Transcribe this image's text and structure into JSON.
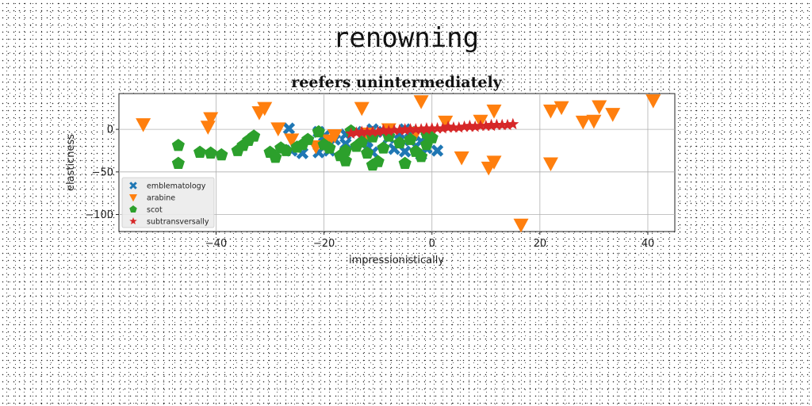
{
  "figure": {
    "suptitle": "renowning"
  },
  "chart_data": {
    "type": "scatter",
    "title": "reefers unintermediately",
    "xlabel": "impressionistically",
    "ylabel": "elasticness",
    "xlim": [
      -58,
      45
    ],
    "ylim": [
      -120,
      42
    ],
    "xticks": [
      -40,
      -20,
      0,
      20,
      40
    ],
    "yticks": [
      0,
      -50,
      -100
    ],
    "grid": true,
    "legend_position": "lower-left",
    "series": [
      {
        "name": "emblematology",
        "marker": "X",
        "color": "#1f77b4",
        "points": [
          [
            -26.5,
            1
          ],
          [
            -21,
            -3
          ],
          [
            -20,
            -8
          ],
          [
            -18,
            -12
          ],
          [
            -21,
            -27
          ],
          [
            -19,
            -25
          ],
          [
            -16,
            -17
          ],
          [
            -13,
            -17
          ],
          [
            -12,
            -22
          ],
          [
            -11,
            -27
          ],
          [
            -12,
            -15
          ],
          [
            -7,
            -23
          ],
          [
            -5,
            -26
          ],
          [
            -3,
            -20
          ],
          [
            -2,
            -14
          ],
          [
            -3.5,
            -7
          ],
          [
            -4,
            -3
          ],
          [
            -5,
            0
          ],
          [
            -6,
            -5
          ],
          [
            -8,
            -10
          ],
          [
            -9,
            -3
          ],
          [
            -11,
            0
          ],
          [
            -14,
            -3
          ],
          [
            -16,
            -6
          ],
          [
            -19,
            -10
          ],
          [
            -24,
            -28
          ],
          [
            -26,
            -25
          ],
          [
            -2,
            -30
          ],
          [
            -1,
            -22
          ],
          [
            1,
            -25
          ],
          [
            -1,
            -10
          ],
          [
            -4,
            -13
          ]
        ]
      },
      {
        "name": "arabine",
        "marker": "v",
        "color": "#ff7f0e",
        "points": [
          [
            -53.5,
            6
          ],
          [
            -41,
            13
          ],
          [
            -41.5,
            3
          ],
          [
            -32,
            20
          ],
          [
            -31,
            25
          ],
          [
            -28.5,
            1
          ],
          [
            -26,
            -12
          ],
          [
            -21.5,
            -20
          ],
          [
            -19,
            -13
          ],
          [
            -18,
            -7
          ],
          [
            -13,
            25
          ],
          [
            -2,
            33
          ],
          [
            2.5,
            9
          ],
          [
            5.5,
            -33
          ],
          [
            9,
            10
          ],
          [
            10.5,
            -45
          ],
          [
            11.5,
            -38
          ],
          [
            11.5,
            22
          ],
          [
            16.5,
            -112
          ],
          [
            22,
            -40
          ],
          [
            22,
            22
          ],
          [
            24,
            26
          ],
          [
            28,
            9
          ],
          [
            30,
            10
          ],
          [
            31,
            27
          ],
          [
            33.5,
            18
          ],
          [
            41,
            34
          ],
          [
            -12,
            -5
          ],
          [
            -8,
            0
          ],
          [
            -3,
            -4
          ]
        ]
      },
      {
        "name": "scot",
        "marker": "p",
        "color": "#2ca02c",
        "points": [
          [
            -47,
            -40
          ],
          [
            -47,
            -19
          ],
          [
            -43,
            -27
          ],
          [
            -41,
            -28
          ],
          [
            -39,
            -30
          ],
          [
            -36,
            -25
          ],
          [
            -35,
            -19
          ],
          [
            -34,
            -13
          ],
          [
            -33,
            -8
          ],
          [
            -30,
            -27
          ],
          [
            -29,
            -33
          ],
          [
            -28,
            -22
          ],
          [
            -27,
            -25
          ],
          [
            -25,
            -21
          ],
          [
            -24,
            -18
          ],
          [
            -23,
            -12
          ],
          [
            -21,
            -3
          ],
          [
            -20,
            -18
          ],
          [
            -19,
            -22
          ],
          [
            -17,
            -31
          ],
          [
            -16,
            -37
          ],
          [
            -16,
            -25
          ],
          [
            -14,
            -20
          ],
          [
            -13,
            -15
          ],
          [
            -12,
            -28
          ],
          [
            -11,
            -42
          ],
          [
            -10,
            -38
          ],
          [
            -9,
            -22
          ],
          [
            -8,
            -8
          ],
          [
            -6,
            -16
          ],
          [
            -5,
            -40
          ],
          [
            -4,
            -12
          ],
          [
            -3,
            -26
          ],
          [
            -2,
            -32
          ],
          [
            -1,
            -18
          ],
          [
            -1,
            -5
          ],
          [
            0,
            -10
          ],
          [
            -15,
            -2
          ],
          [
            -11,
            -9
          ]
        ]
      },
      {
        "name": "subtransversally",
        "marker": "*",
        "color": "#d62728",
        "points": [
          [
            -15,
            -5
          ],
          [
            -14,
            -4
          ],
          [
            -13,
            -4
          ],
          [
            -12,
            -3
          ],
          [
            -11,
            -3
          ],
          [
            -10,
            -3
          ],
          [
            -9,
            -2
          ],
          [
            -8,
            -2
          ],
          [
            -7,
            -1
          ],
          [
            -6,
            -1
          ],
          [
            -5,
            -1
          ],
          [
            -4,
            0
          ],
          [
            -3,
            0
          ],
          [
            -2,
            0
          ],
          [
            -1,
            0
          ],
          [
            0,
            1
          ],
          [
            1,
            1
          ],
          [
            2,
            1
          ],
          [
            3,
            2
          ],
          [
            4,
            2
          ],
          [
            5,
            2
          ],
          [
            6,
            3
          ],
          [
            7,
            3
          ],
          [
            8,
            3
          ],
          [
            9,
            4
          ],
          [
            10,
            4
          ],
          [
            11,
            4
          ],
          [
            12,
            5
          ],
          [
            13,
            5
          ],
          [
            14,
            5
          ],
          [
            15,
            6
          ],
          [
            -13,
            -3
          ],
          [
            -9,
            -1
          ],
          [
            -5,
            0
          ],
          [
            -1,
            1
          ],
          [
            3,
            3
          ],
          [
            7,
            4
          ],
          [
            11,
            5
          ]
        ]
      }
    ]
  }
}
